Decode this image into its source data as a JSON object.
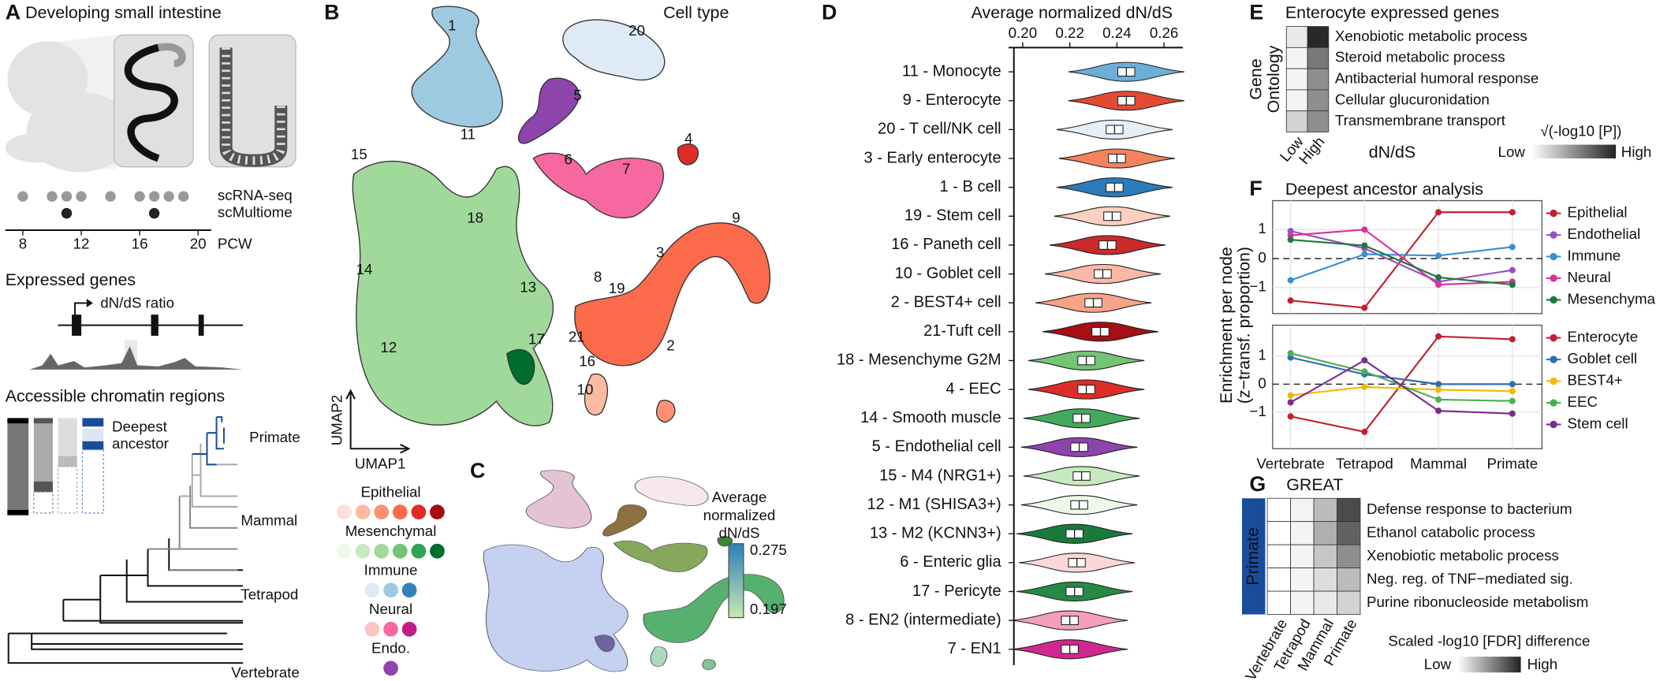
{
  "panel_a": {
    "label": "A",
    "title": "Developing small intestine",
    "assays": [
      {
        "name": "scRNA-seq",
        "pcw": [
          8,
          10,
          11,
          12,
          14,
          16,
          17,
          18,
          19
        ],
        "color": "#999999"
      },
      {
        "name": "scMultiome",
        "pcw": [
          11,
          17
        ],
        "color": "#222222"
      }
    ],
    "xlim": [
      6.8,
      20.9
    ],
    "xticks": [
      8,
      12,
      16,
      20
    ],
    "x_label": "PCW",
    "expressed_genes": "Expressed genes",
    "ratio_label": "dN/dS ratio",
    "chromatin": "Accessible chromatin regions",
    "deepest_ancestor": [
      "Deepest",
      "ancestor"
    ],
    "clades": [
      {
        "name": "Primate",
        "color": "#1a4c9c"
      },
      {
        "name": "Mammal",
        "color": "#aaaaaa"
      },
      {
        "name": "Tetrapod",
        "color": "#777777"
      },
      {
        "name": "Vertebrate",
        "color": "#111111"
      }
    ]
  },
  "panel_b": {
    "label": "B",
    "title": "Cell type",
    "clusters": [
      "1",
      "2",
      "3",
      "4",
      "5",
      "6",
      "7",
      "8",
      "9",
      "10",
      "11",
      "12",
      "13",
      "14",
      "15",
      "16",
      "17",
      "18",
      "19",
      "20",
      "21"
    ],
    "x_label": "UMAP1",
    "y_label": "UMAP2",
    "legend": [
      {
        "name": "Epithelial",
        "colors": [
          "#fde0d6",
          "#fcbba1",
          "#fc9272",
          "#fb6a4a",
          "#de2d26",
          "#a50f15"
        ]
      },
      {
        "name": "Mesenchymal",
        "colors": [
          "#edf8e9",
          "#c7e9c0",
          "#a1d99b",
          "#74c476",
          "#31a354",
          "#006d2c"
        ]
      },
      {
        "name": "Immune",
        "colors": [
          "#deebf7",
          "#9ecae1",
          "#3182bd"
        ]
      },
      {
        "name": "Neural",
        "colors": [
          "#fcc5c0",
          "#f768a1",
          "#c51b8a"
        ]
      },
      {
        "name": "Endo.",
        "colors": [
          "#8e44ad"
        ]
      }
    ]
  },
  "panel_c": {
    "label": "C",
    "colorbar_title": [
      "Average",
      "normalized",
      "dN/dS"
    ],
    "colorbar_max": 0.275,
    "colorbar_min": 0.197,
    "colors": [
      "#2c7fb8",
      "#c7e9b4"
    ]
  },
  "panel_d": {
    "label": "D",
    "type": "violin",
    "title": "Average normalized dN/dS",
    "categories": [
      "11 - Monocyte",
      "9 - Enterocyte",
      "20 - T cell/NK cell",
      "3 - Early enterocyte",
      "1 - B cell",
      "19 - Stem cell",
      "16 - Paneth cell",
      "10 - Goblet cell",
      "2 - BEST4+ cell",
      "21-Tuft cell",
      "18 - Mesenchyme G2M",
      "4 - EEC",
      "14 - Smooth muscle",
      "5 - Endothelial cell",
      "15 - M4 (NRG1+)",
      "12 - M1 (SHISA3+)",
      "13 - M2 (KCNN3+)",
      "6 - Enteric glia",
      "17 - Pericyte",
      "8 - EN2 (intermediate)",
      "7 - EN1"
    ],
    "values": [
      0.244,
      0.244,
      0.239,
      0.24,
      0.239,
      0.238,
      0.236,
      0.234,
      0.23,
      0.233,
      0.227,
      0.227,
      0.225,
      0.224,
      0.225,
      0.224,
      0.222,
      0.223,
      0.222,
      0.22,
      0.22
    ],
    "colors": [
      "#6baed6",
      "#e34a33",
      "#e6eef7",
      "#f4825e",
      "#2b7bba",
      "#fbd0c0",
      "#c92a2a",
      "#f9b9a4",
      "#f6a387",
      "#a50f15",
      "#74c476",
      "#de2d26",
      "#41ab5d",
      "#8e44ad",
      "#c7e9c0",
      "#edf8e9",
      "#1a7a3a",
      "#fbd7d7",
      "#238b45",
      "#f59ec0",
      "#d0288f"
    ],
    "xlim": [
      0.194,
      0.268
    ],
    "xticks": [
      {
        "value": 0.2,
        "label": "0.20"
      },
      0.22,
      0.24,
      0.26
    ]
  },
  "panel_e": {
    "label": "E",
    "title": "Enterocyte expressed genes",
    "y_label": [
      "Gene",
      "Ontology"
    ],
    "columns": [
      "Low",
      "High"
    ],
    "x_label": "dN/dS",
    "rows": [
      "Xenobiotic metabolic process",
      "Steroid metabolic process",
      "Antibacterial humoral response",
      "Cellular glucuronidation",
      "Transmembrane transport"
    ],
    "values": [
      [
        0.1,
        0.95
      ],
      [
        0.05,
        0.6
      ],
      [
        0.05,
        0.5
      ],
      [
        0.05,
        0.5
      ],
      [
        0.2,
        0.5
      ]
    ],
    "colorbar_title": "√(-log10 [P])",
    "colorbar_low": "Low",
    "colorbar_high": "High"
  },
  "panel_f": {
    "label": "F",
    "type": "line",
    "title": "Deepest ancestor analysis",
    "y_label": [
      "Enrichment per node",
      "(z−transf. proportion)"
    ],
    "categories": [
      "Vertebrate",
      "Tetrapod",
      "Mammal",
      "Primate"
    ],
    "category_colors": [
      "#111111",
      "#777777",
      "#aaaaaa",
      "#1a4c9c"
    ],
    "charts": [
      {
        "ylim": [
          -1.9,
          2.0
        ],
        "yticks": [
          {
            "value": -1,
            "label": "−1"
          },
          0,
          1
        ],
        "series": [
          {
            "name": "Epithelial",
            "color": "#c2202f",
            "values": [
              -1.45,
              -1.7,
              1.6,
              1.6
            ]
          },
          {
            "name": "Endothelial",
            "color": "#9b4fc4",
            "values": [
              0.95,
              0.35,
              -0.8,
              -0.4
            ]
          },
          {
            "name": "Immune",
            "color": "#3a8fd0",
            "values": [
              -0.75,
              0.15,
              0.1,
              0.4
            ]
          },
          {
            "name": "Neural",
            "color": "#d4359c",
            "values": [
              0.8,
              1.0,
              -0.9,
              -0.8
            ]
          },
          {
            "name": "Mesenchymal",
            "color": "#1e7a3c",
            "values": [
              0.65,
              0.45,
              -0.65,
              -0.9
            ]
          }
        ]
      },
      {
        "ylim": [
          -2.3,
          2.1
        ],
        "yticks": [
          {
            "value": -1,
            "label": "−1"
          },
          0,
          1
        ],
        "series": [
          {
            "name": "Enterocyte",
            "color": "#c2202f",
            "values": [
              -1.15,
              -1.7,
              1.7,
              1.6
            ]
          },
          {
            "name": "Goblet cell",
            "color": "#2f6cb5",
            "values": [
              0.95,
              0.35,
              0,
              0
            ]
          },
          {
            "name": "BEST4+",
            "color": "#f5b800",
            "values": [
              -0.4,
              -0.1,
              -0.2,
              -0.25
            ]
          },
          {
            "name": "EEC",
            "color": "#4caf50",
            "values": [
              1.1,
              0.45,
              -0.55,
              -0.6
            ]
          },
          {
            "name": "Stem cell",
            "color": "#7b2c8f",
            "values": [
              -0.65,
              0.85,
              -0.95,
              -1.05
            ]
          }
        ]
      }
    ]
  },
  "panel_g": {
    "label": "G",
    "title": "GREAT",
    "row_group": "Primate",
    "columns": [
      "Vertebrate",
      "Tetrapod",
      "Mammal",
      "Primate"
    ],
    "column_colors": [
      "#111111",
      "#777777",
      "#aaaaaa",
      "#1a4c9c"
    ],
    "rows": [
      "Defense response to bacterium",
      "Ethanol catabolic process",
      "Xenobiotic metabolic process",
      "Neg. reg. of TNF−mediated sig.",
      "Purine ribonucleoside metabolism"
    ],
    "values": [
      [
        0,
        0.05,
        0.3,
        0.8
      ],
      [
        0,
        0.05,
        0.35,
        0.7
      ],
      [
        0,
        0.05,
        0.25,
        0.5
      ],
      [
        0,
        0.05,
        0.15,
        0.3
      ],
      [
        0,
        0.05,
        0.1,
        0.2
      ]
    ],
    "colorbar_title": "Scaled -log10 [FDR] difference",
    "colorbar_low": "Low",
    "colorbar_high": "High"
  }
}
